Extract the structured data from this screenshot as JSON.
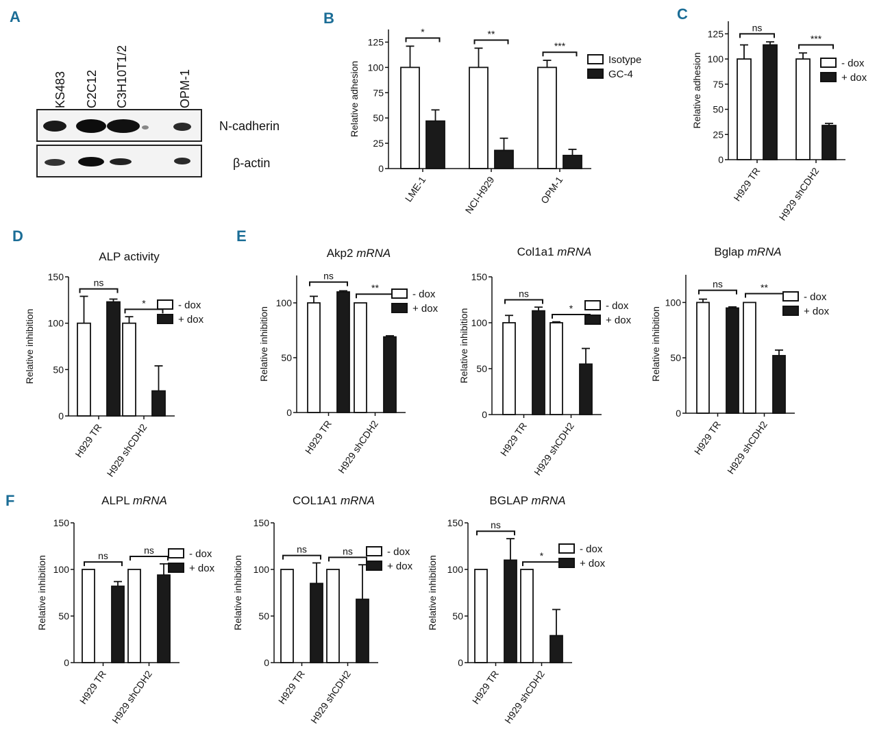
{
  "panel_letters": {
    "A": "A",
    "B": "B",
    "C": "C",
    "D": "D",
    "E": "E",
    "F": "F"
  },
  "blot": {
    "lanes": [
      "KS483",
      "C2C12",
      "C3H10T1/2",
      "OPM-1"
    ],
    "rows": [
      "N-cadherin",
      "β-actin"
    ]
  },
  "chart_data": [
    {
      "id": "B",
      "type": "bar",
      "title": "",
      "title_it": "",
      "ylabel": "Relative adhesion",
      "ylim": [
        0,
        137.5
      ],
      "yticks": [
        0,
        25,
        50,
        75,
        100,
        125
      ],
      "categories": [
        "LME-1",
        "NCI-H929",
        "OPM-1"
      ],
      "series": [
        {
          "name": "Isotype",
          "fill": "#ffffff",
          "values": [
            100,
            100,
            100
          ],
          "errors": [
            21,
            19,
            7
          ]
        },
        {
          "name": "GC-4",
          "fill": "#1a1a1a",
          "values": [
            47,
            18,
            13
          ],
          "errors": [
            11,
            12,
            6
          ]
        }
      ],
      "significance": [
        "*",
        "**",
        "***"
      ],
      "legend": "top-right"
    },
    {
      "id": "C",
      "type": "bar",
      "title": "",
      "title_it": "",
      "ylabel": "Relative adhesion",
      "ylim": [
        0,
        137.5
      ],
      "yticks": [
        0,
        25,
        50,
        75,
        100,
        125
      ],
      "categories": [
        "H929 TR",
        "H929 shCDH2"
      ],
      "series": [
        {
          "name": "- dox",
          "fill": "#ffffff",
          "values": [
            100,
            100
          ],
          "errors": [
            14,
            6
          ]
        },
        {
          "name": "+ dox",
          "fill": "#1a1a1a",
          "values": [
            114,
            34
          ],
          "errors": [
            3,
            2
          ]
        }
      ],
      "significance": [
        "ns",
        "***"
      ],
      "legend": "top-right"
    },
    {
      "id": "D",
      "type": "bar",
      "title": "ALP activity",
      "title_it": "",
      "ylabel": "Relative inhibition",
      "ylim": [
        0,
        150
      ],
      "yticks": [
        0,
        50,
        100,
        150
      ],
      "categories": [
        "H929 TR",
        "H929 shCDH2"
      ],
      "series": [
        {
          "name": "- dox",
          "fill": "#ffffff",
          "values": [
            100,
            100
          ],
          "errors": [
            29,
            7
          ]
        },
        {
          "name": "+ dox",
          "fill": "#1a1a1a",
          "values": [
            123,
            27
          ],
          "errors": [
            3,
            27
          ]
        }
      ],
      "significance": [
        "ns",
        "*"
      ],
      "legend": "top-right"
    },
    {
      "id": "E1",
      "type": "bar",
      "title": "Akp2 ",
      "title_it": "mRNA",
      "ylabel": "Relative inhibition",
      "ylim": [
        0,
        125
      ],
      "yticks": [
        0,
        50,
        100
      ],
      "categories": [
        "H929 TR",
        "H929 shCDH2"
      ],
      "series": [
        {
          "name": "- dox",
          "fill": "#ffffff",
          "values": [
            100,
            100
          ],
          "errors": [
            6,
            0
          ]
        },
        {
          "name": "+ dox",
          "fill": "#1a1a1a",
          "values": [
            110,
            69
          ],
          "errors": [
            1,
            1
          ]
        }
      ],
      "significance": [
        "ns",
        "**"
      ],
      "legend": "top-right"
    },
    {
      "id": "E2",
      "type": "bar",
      "title": "Col1a1 ",
      "title_it": "mRNA",
      "ylabel": "Relative inhibition",
      "ylim": [
        0,
        150
      ],
      "yticks": [
        0,
        50,
        100,
        150
      ],
      "categories": [
        "H929 TR",
        "H929 shCDH2"
      ],
      "series": [
        {
          "name": "- dox",
          "fill": "#ffffff",
          "values": [
            100,
            100
          ],
          "errors": [
            8,
            1
          ]
        },
        {
          "name": "+ dox",
          "fill": "#1a1a1a",
          "values": [
            113,
            55
          ],
          "errors": [
            4,
            17
          ]
        }
      ],
      "significance": [
        "ns",
        "*"
      ],
      "legend": "top-right"
    },
    {
      "id": "E3",
      "type": "bar",
      "title": "Bglap ",
      "title_it": "mRNA",
      "ylabel": "Relative inhibition",
      "ylim": [
        0,
        125
      ],
      "yticks": [
        0,
        50,
        100
      ],
      "categories": [
        "H929 TR",
        "H929 shCDH2"
      ],
      "series": [
        {
          "name": "- dox",
          "fill": "#ffffff",
          "values": [
            100,
            100
          ],
          "errors": [
            3,
            0
          ]
        },
        {
          "name": "+ dox",
          "fill": "#1a1a1a",
          "values": [
            95,
            52
          ],
          "errors": [
            1,
            5
          ]
        }
      ],
      "significance": [
        "ns",
        "**"
      ],
      "legend": "top-right"
    },
    {
      "id": "F1",
      "type": "bar",
      "title": "ALPL ",
      "title_it": "mRNA",
      "ylabel": "Relative inhibition",
      "ylim": [
        0,
        150
      ],
      "yticks": [
        0,
        50,
        100,
        150
      ],
      "categories": [
        "H929 TR",
        "H929 shCDH2"
      ],
      "series": [
        {
          "name": "- dox",
          "fill": "#ffffff",
          "values": [
            100,
            100
          ],
          "errors": [
            0,
            0
          ]
        },
        {
          "name": "+ dox",
          "fill": "#1a1a1a",
          "values": [
            82,
            94
          ],
          "errors": [
            5,
            12
          ]
        }
      ],
      "significance": [
        "ns",
        "ns"
      ],
      "legend": "top-right"
    },
    {
      "id": "F2",
      "type": "bar",
      "title": "COL1A1 ",
      "title_it": "mRNA",
      "ylabel": "Relative inhibition",
      "ylim": [
        0,
        150
      ],
      "yticks": [
        0,
        50,
        100,
        150
      ],
      "categories": [
        "H929 TR",
        "H929 shCDH2"
      ],
      "series": [
        {
          "name": "- dox",
          "fill": "#ffffff",
          "values": [
            100,
            100
          ],
          "errors": [
            0,
            0
          ]
        },
        {
          "name": "+ dox",
          "fill": "#1a1a1a",
          "values": [
            85,
            68
          ],
          "errors": [
            22,
            37
          ]
        }
      ],
      "significance": [
        "ns",
        "ns"
      ],
      "legend": "top-right"
    },
    {
      "id": "F3",
      "type": "bar",
      "title": "BGLAP ",
      "title_it": "mRNA",
      "ylabel": "Relative inhibition",
      "ylim": [
        0,
        150
      ],
      "yticks": [
        0,
        50,
        100,
        150
      ],
      "categories": [
        "H929 TR",
        "H929 shCDH2"
      ],
      "series": [
        {
          "name": "- dox",
          "fill": "#ffffff",
          "values": [
            100,
            100
          ],
          "errors": [
            0,
            0
          ]
        },
        {
          "name": "+ dox",
          "fill": "#1a1a1a",
          "values": [
            110,
            29
          ],
          "errors": [
            23,
            28
          ]
        }
      ],
      "significance": [
        "ns",
        "*"
      ],
      "legend": "top-right"
    }
  ]
}
